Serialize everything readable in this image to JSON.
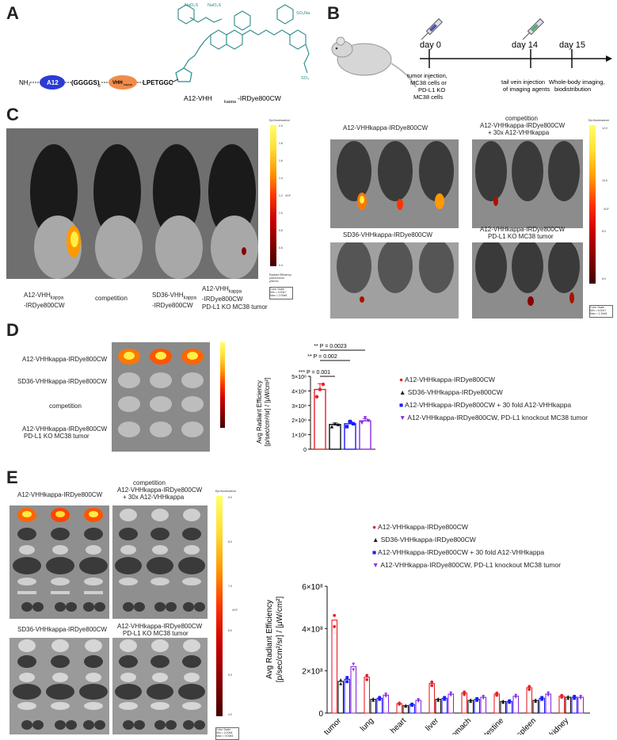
{
  "panel_a": {
    "label": "A",
    "nh2": "NH₂",
    "a12": "A12",
    "linker": "(GGGGS)",
    "linker_sub": "3",
    "vhh": "VHH",
    "vhh_sub": "kappa",
    "lpetggc": "LPETGGC",
    "na1": "NaO₃S",
    "na2": "NaO₃S",
    "so3na": "SO₃Na",
    "so3": "SO₃",
    "caption": "A12-VHH",
    "caption_sub": "kappa",
    "caption_end": "-IRDye800CW"
  },
  "panel_b": {
    "label": "B",
    "day0": "day 0",
    "day14": "day 14",
    "day15": "day 15",
    "step1": [
      "tumor injection,",
      "MC38 cells or",
      "PD-L1 KO",
      "MC38 cells"
    ],
    "step2": [
      "tail vein injection",
      "of imaging agents"
    ],
    "step3": [
      "Whole-body imaging,",
      "biodistribution"
    ]
  },
  "panel_c": {
    "label": "C",
    "captions": [
      [
        "A12-VHH",
        "kappa",
        "",
        "-IRDye800CW"
      ],
      [
        "competition"
      ],
      [
        "SD36-VHH",
        "kappa",
        "",
        "-IRDye800CW"
      ],
      [
        "A12-VHH",
        "kappa",
        "",
        "-IRDye800CW",
        "PD-L1 KO MC38 tumor"
      ]
    ],
    "colorbar_title": "Epi-fluorescence",
    "colorbar_ticks": [
      "2.0",
      "1.8",
      "1.6",
      "1.4",
      "1.2",
      "1.0",
      "0.8",
      "0.6",
      "0.4"
    ],
    "colorbar_exp": "x10⁸",
    "colorbar_unit": [
      "Radiant Efficiency",
      "p/sec/cm²/sr",
      "μW/cm²"
    ],
    "colorbar_scale": [
      "Color Scale",
      "Min = 4.00e7",
      "Max = 2.00e8"
    ],
    "right_titles": {
      "tl": "A12-VHHkappa-IRDye800CW",
      "tr_line1": "competition",
      "tr_line2": "A12-VHHkappa-IRDye800CW",
      "tr_line3": "+ 30x A12-VHHkappa",
      "bl": "SD36-VHHkappa-IRDye800CW",
      "br_line1": "A12-VHHkappa-IRDye800CW",
      "br_line2": "PD-L1 KO MC38 tumor"
    },
    "right_colorbar_title": "Epi-fluorescence",
    "right_colorbar_ticks": [
      "12.0",
      "10.0",
      "8.0",
      "6.0"
    ],
    "right_colorbar_exp": "x10⁷",
    "right_colorbar_scale": [
      "Color Scale",
      "Min = 6.00e7",
      "Max = 1.30e8"
    ]
  },
  "panel_d": {
    "label": "D",
    "row_labels": [
      "A12-VHHkappa-IRDye800CW",
      "SD36-VHHkappa-IRDye800CW",
      "competition",
      "A12-VHHkappa-IRDye800CW",
      "PD-L1 KO MC38 tumor"
    ],
    "sig": [
      "** P = 0.0023",
      "** P = 0.002",
      "*** P = 0.001"
    ],
    "ylabel_1": "Avg Radiant Efficiency",
    "ylabel_2": "[p/sec/cm²/sr] / [μW/cm²]",
    "yticks": [
      "5×10⁸",
      "4×10⁸",
      "3×10⁸",
      "2×10⁸",
      "1×10⁸",
      "0"
    ],
    "legend": [
      "A12-VHHkappa-IRDye800CW",
      "SD36-VHHkappa-IRDye800CW",
      "A12-VHHkappa-IRDye800CW + 30 fold A12-VHHkappa",
      "A12-VHHkappa-IRDye800CW, PD-L1 knockout MC38 tumor"
    ]
  },
  "panel_e": {
    "label": "E",
    "titles": {
      "tl": "A12-VHHkappa-IRDye800CW",
      "tr_line1": "competition",
      "tr_line2": "A12-VHHkappa-IRDye800CW",
      "tr_line3": "+ 30x A12-VHHkappa",
      "bl": "SD36-VHHkappa-IRDye800CW",
      "br_line1": "A12-VHHkappa-IRDye800CW",
      "br_line2": "PD-L1 KO MC38 tumor"
    },
    "colorbar_title": "Epi-fluorescence",
    "colorbar_ticks": [
      "9.0",
      "8.0",
      "7.0",
      "6.0",
      "5.0",
      "4.0"
    ],
    "colorbar_exp": "x10⁸",
    "colorbar_scale": [
      "Color Scale",
      "Min = 4.00e8",
      "Max = 9.00e8"
    ],
    "legend": [
      "A12-VHHkappa-IRDye800CW",
      "SD36-VHHkappa-IRDye800CW",
      "A12-VHHkappa-IRDye800CW + 30 fold A12-VHHkappa",
      "A12-VHHkappa-IRDye800CW, PD-L1 knockout MC38 tumor"
    ],
    "ylabel_1": "Avg Radiant Efficiency",
    "ylabel_2": "[p/sec/cm²/sr] / [μW/cm²]",
    "yticks": [
      "6×10⁸",
      "4×10⁸",
      "2×10⁸",
      "0"
    ]
  },
  "colors": {
    "red": "#e8202a",
    "black": "#111111",
    "blue": "#1a1aff",
    "purple": "#8a2be2",
    "a12_oval": "#2b3bd6",
    "vhh_oval": "#f08c4a",
    "dye": "#2a8a8a"
  },
  "chart_data": [
    {
      "type": "bar",
      "categories": [
        "A12-VHHkappa-IRDye800CW",
        "SD36-VHHkappa-IRDye800CW",
        "A12-VHHkappa-IRDye800CW + 30 fold A12-VHHkappa",
        "A12-VHHkappa-IRDye800CW, PD-L1 knockout MC38 tumor"
      ],
      "values": [
        410000000.0,
        170000000.0,
        175000000.0,
        195000000.0
      ],
      "points": [
        [
          360000000.0,
          410000000.0,
          445000000.0
        ],
        [
          155000000.0,
          175000000.0,
          170000000.0
        ],
        [
          155000000.0,
          190000000.0,
          175000000.0
        ],
        [
          180000000.0,
          215000000.0,
          195000000.0
        ]
      ],
      "errors": [
        40000000.0,
        10000000.0,
        15000000.0,
        15000000.0
      ],
      "ylim": [
        0,
        500000000.0
      ],
      "xlabel": "",
      "ylabel": "Avg Radiant Efficiency [p/sec/cm²/sr] / [μW/cm²]",
      "annotations": [
        "*** P = 0.001",
        "** P = 0.002",
        "** P = 0.0023"
      ]
    },
    {
      "type": "bar",
      "categories": [
        "tumor",
        "lung",
        "heart",
        "liver",
        "stomach",
        "intestine",
        "spleen",
        "kidney"
      ],
      "series": [
        {
          "name": "A12-VHHkappa-IRDye800CW",
          "values": [
            440000000.0,
            170000000.0,
            45000000.0,
            140000000.0,
            95000000.0,
            90000000.0,
            120000000.0,
            80000000.0
          ]
        },
        {
          "name": "SD36-VHHkappa-IRDye800CW",
          "values": [
            150000000.0,
            65000000.0,
            35000000.0,
            65000000.0,
            60000000.0,
            55000000.0,
            60000000.0,
            75000000.0
          ]
        },
        {
          "name": "A12-VHHkappa-IRDye800CW + 30 fold A12-VHHkappa",
          "values": [
            160000000.0,
            70000000.0,
            40000000.0,
            70000000.0,
            65000000.0,
            55000000.0,
            70000000.0,
            75000000.0
          ]
        },
        {
          "name": "A12-VHHkappa-IRDye800CW, PD-L1 knockout MC38 tumor",
          "values": [
            220000000.0,
            85000000.0,
            60000000.0,
            90000000.0,
            75000000.0,
            80000000.0,
            90000000.0,
            75000000.0
          ]
        }
      ],
      "ylim": [
        0,
        600000000.0
      ],
      "xlabel": "",
      "ylabel": "Avg Radiant Efficiency [p/sec/cm²/sr] / [μW/cm²]"
    }
  ]
}
